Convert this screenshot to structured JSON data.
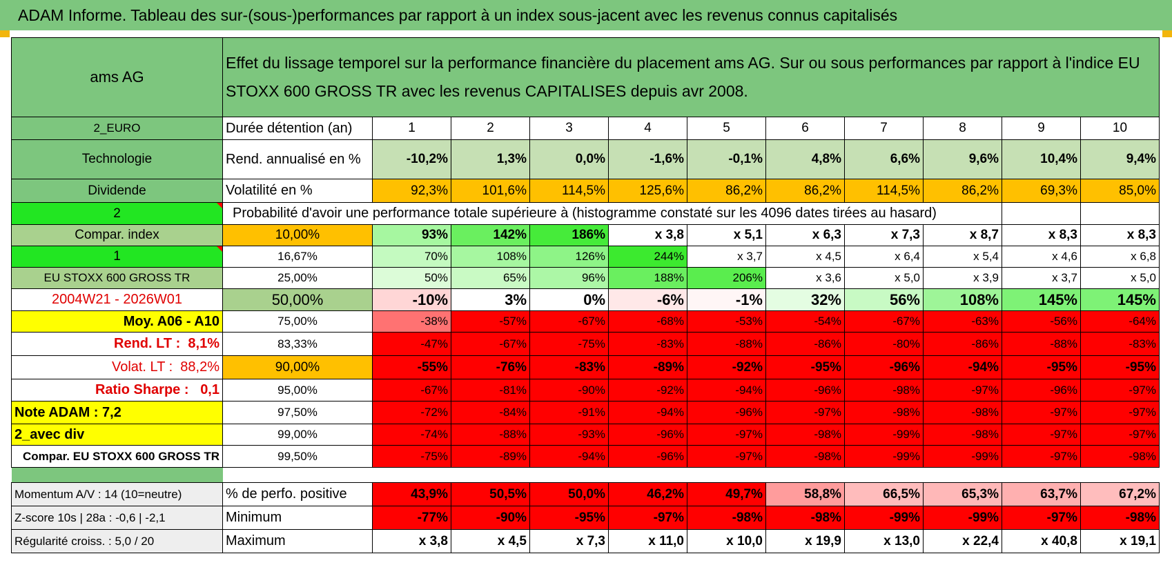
{
  "title": "ADAM Informe. Tableau des sur-(sous-)performances par rapport à un index sous-jacent avec les revenus connus capitalisés",
  "company": "ams AG",
  "description": "Effet du lissage temporel sur la performance financière du placement ams AG. Sur ou sous performances par rapport à l'indice EU STOXX 600 GROSS TR avec les revenus CAPITALISES depuis avr 2008.",
  "left": {
    "currency": "2_EURO",
    "sector": "Technologie",
    "dividend": "Dividende",
    "num2": "2",
    "compar": "Compar. index",
    "num1": "1",
    "index_name": "EU STOXX 600 GROSS TR",
    "period": "2004W21 - 2026W01",
    "avg": "Moy. A06 - A10",
    "rend_label": "Rend. LT :",
    "rend_value": "8,1%",
    "volat_label": "Volat. LT :",
    "volat_value": "88,2%",
    "sharpe_label": "Ratio Sharpe :",
    "sharpe_value": "0,1",
    "note": "Note ADAM : 7,2",
    "avec_div": "2_avec div",
    "compar_eu": "Compar. EU STOXX 600 GROSS TR"
  },
  "header": {
    "label": "Durée détention (an)",
    "years": [
      "1",
      "2",
      "3",
      "4",
      "5",
      "6",
      "7",
      "8",
      "9",
      "10"
    ]
  },
  "rend": {
    "label": "Rend. annualisé en %",
    "values": [
      "-10,2%",
      "1,3%",
      "0,0%",
      "-1,6%",
      "-0,1%",
      "4,8%",
      "6,6%",
      "9,6%",
      "10,4%",
      "9,4%"
    ]
  },
  "vol": {
    "label": "Volatilité en %",
    "values": [
      "92,3%",
      "101,6%",
      "114,5%",
      "125,6%",
      "86,2%",
      "86,2%",
      "114,5%",
      "86,2%",
      "69,3%",
      "85,0%"
    ]
  },
  "prob_label": "Probabilité d'avoir une performance totale supérieure à (histogramme constaté sur les 4096 dates tirées au hasard)",
  "quantiles": [
    {
      "q": "10,00%",
      "values": [
        "93%",
        "142%",
        "186%",
        "x 3,8",
        "x 5,1",
        "x 6,3",
        "x 7,3",
        "x 8,7",
        "x 8,3",
        "x 8,3"
      ]
    },
    {
      "q": "16,67%",
      "values": [
        "70%",
        "108%",
        "126%",
        "244%",
        "x 3,7",
        "x 4,5",
        "x 6,4",
        "x 5,4",
        "x 4,6",
        "x 6,8"
      ]
    },
    {
      "q": "25,00%",
      "values": [
        "50%",
        "65%",
        "96%",
        "188%",
        "206%",
        "x 3,6",
        "x 5,0",
        "x 3,9",
        "x 3,7",
        "x 5,0"
      ]
    },
    {
      "q": "50,00%",
      "values": [
        "-10%",
        "3%",
        "0%",
        "-6%",
        "-1%",
        "32%",
        "56%",
        "108%",
        "145%",
        "145%"
      ]
    },
    {
      "q": "75,00%",
      "values": [
        "-38%",
        "-57%",
        "-67%",
        "-68%",
        "-53%",
        "-54%",
        "-67%",
        "-63%",
        "-56%",
        "-64%"
      ]
    },
    {
      "q": "83,33%",
      "values": [
        "-47%",
        "-67%",
        "-75%",
        "-83%",
        "-88%",
        "-86%",
        "-80%",
        "-86%",
        "-88%",
        "-83%"
      ]
    },
    {
      "q": "90,00%",
      "values": [
        "-55%",
        "-76%",
        "-83%",
        "-89%",
        "-92%",
        "-95%",
        "-96%",
        "-94%",
        "-95%",
        "-95%"
      ]
    },
    {
      "q": "95,00%",
      "values": [
        "-67%",
        "-81%",
        "-90%",
        "-92%",
        "-94%",
        "-96%",
        "-98%",
        "-97%",
        "-96%",
        "-97%"
      ]
    },
    {
      "q": "97,50%",
      "values": [
        "-72%",
        "-84%",
        "-91%",
        "-94%",
        "-96%",
        "-97%",
        "-98%",
        "-98%",
        "-97%",
        "-97%"
      ]
    },
    {
      "q": "99,00%",
      "values": [
        "-74%",
        "-88%",
        "-93%",
        "-96%",
        "-97%",
        "-98%",
        "-99%",
        "-98%",
        "-97%",
        "-97%"
      ]
    },
    {
      "q": "99,50%",
      "values": [
        "-75%",
        "-89%",
        "-94%",
        "-96%",
        "-97%",
        "-98%",
        "-99%",
        "-99%",
        "-97%",
        "-98%"
      ]
    }
  ],
  "bottom": [
    {
      "left": "Momentum A/V : 14 (10=neutre)",
      "label": "% de perfo. positive",
      "values": [
        "43,9%",
        "50,5%",
        "50,0%",
        "46,2%",
        "49,7%",
        "58,8%",
        "66,5%",
        "65,3%",
        "63,7%",
        "67,2%"
      ]
    },
    {
      "left": "Z-score 10s | 28a : -0,6 | -2,1",
      "label": "Minimum",
      "values": [
        "-77%",
        "-90%",
        "-95%",
        "-97%",
        "-98%",
        "-98%",
        "-99%",
        "-99%",
        "-97%",
        "-98%"
      ]
    },
    {
      "left": "Régularité croiss. : 5,0 / 20",
      "label": "Maximum",
      "values": [
        "x 3,8",
        "x 4,5",
        "x 7,3",
        "x 11,0",
        "x 10,0",
        "x 19,9",
        "x 13,0",
        "x 22,4",
        "x 40,8",
        "x 19,1"
      ]
    }
  ],
  "colors": {
    "banner_green": "#7dc67e",
    "bright_green": "#22e622",
    "yellow": "#ffff00",
    "orange": "#ffc000",
    "light_green": "#c6e0b4",
    "red": "#ff0000",
    "red_text": "#e00000"
  }
}
